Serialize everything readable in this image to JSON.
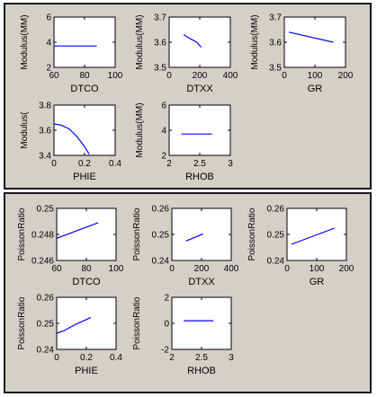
{
  "panels": [
    {
      "id": "top",
      "charts": [
        {
          "type": "line",
          "xlabel": "DTCO",
          "ylabel": "Modulus(MM)",
          "xlim": [
            60,
            100
          ],
          "ylim": [
            2,
            6
          ],
          "xticks": [
            "60",
            "80",
            "100"
          ],
          "yticks": [
            "2",
            "4",
            "6"
          ],
          "x": [
            60,
            88
          ],
          "y": [
            3.7,
            3.7
          ]
        },
        {
          "type": "line",
          "xlabel": "DTXX",
          "ylabel": "Modulus(MM)",
          "xlim": [
            0,
            400
          ],
          "ylim": [
            3.5,
            3.7
          ],
          "xticks": [
            "0",
            "200",
            "400"
          ],
          "yticks": [
            "3.5",
            "3.6",
            "3.7"
          ],
          "x": [
            95,
            120,
            150,
            180,
            210
          ],
          "y": [
            3.63,
            3.62,
            3.61,
            3.6,
            3.58
          ]
        },
        {
          "type": "line",
          "xlabel": "GR",
          "ylabel": "Modulus(MM)",
          "xlim": [
            0,
            200
          ],
          "ylim": [
            3.5,
            3.7
          ],
          "xticks": [
            "0",
            "100",
            "200"
          ],
          "yticks": [
            "3.5",
            "3.6",
            "3.7"
          ],
          "x": [
            15,
            160
          ],
          "y": [
            3.64,
            3.6
          ]
        },
        {
          "type": "line",
          "xlabel": "PHIE",
          "ylabel": "Modulus(",
          "xlim": [
            0,
            0.4
          ],
          "ylim": [
            3.4,
            3.8
          ],
          "xticks": [
            "0",
            "0.2",
            "0.4"
          ],
          "yticks": [
            "3.4",
            "3.6",
            "3.8"
          ],
          "x": [
            0,
            0.05,
            0.1,
            0.15,
            0.2,
            0.23
          ],
          "y": [
            3.65,
            3.64,
            3.61,
            3.55,
            3.47,
            3.41
          ]
        },
        {
          "type": "line",
          "xlabel": "RHOB",
          "ylabel": "Modulus(MM)",
          "xlim": [
            2,
            3
          ],
          "ylim": [
            2,
            6
          ],
          "xticks": [
            "2",
            "2.5",
            "3"
          ],
          "yticks": [
            "2",
            "4",
            "6"
          ],
          "x": [
            2.2,
            2.7
          ],
          "y": [
            3.7,
            3.7
          ]
        }
      ]
    },
    {
      "id": "bottom",
      "charts": [
        {
          "type": "line",
          "xlabel": "DTCO",
          "ylabel": "PoissonRatio",
          "xlim": [
            60,
            100
          ],
          "ylim": [
            0.246,
            0.25
          ],
          "xticks": [
            "60",
            "80",
            "100"
          ],
          "yticks": [
            "0.246",
            "0.248",
            "0.25"
          ],
          "x": [
            60,
            88
          ],
          "y": [
            0.2477,
            0.2489
          ]
        },
        {
          "type": "line",
          "xlabel": "DTXX",
          "ylabel": "PoissonRatio",
          "xlim": [
            0,
            400
          ],
          "ylim": [
            0.24,
            0.26
          ],
          "xticks": [
            "0",
            "200",
            "400"
          ],
          "yticks": [
            "0.24",
            "0.25",
            "0.26"
          ],
          "x": [
            95,
            210
          ],
          "y": [
            0.2475,
            0.2502
          ]
        },
        {
          "type": "line",
          "xlabel": "GR",
          "ylabel": "PoissonRatio",
          "xlim": [
            0,
            200
          ],
          "ylim": [
            0.24,
            0.26
          ],
          "xticks": [
            "0",
            "100",
            "200"
          ],
          "yticks": [
            "0.24",
            "0.25",
            "0.26"
          ],
          "x": [
            15,
            160
          ],
          "y": [
            0.2462,
            0.2524
          ]
        },
        {
          "type": "line",
          "xlabel": "PHIE",
          "ylabel": "PoissonRatio",
          "xlim": [
            0,
            0.4
          ],
          "ylim": [
            0.24,
            0.26
          ],
          "xticks": [
            "0",
            "0.2",
            "0.4"
          ],
          "yticks": [
            "0.24",
            "0.25",
            "0.26"
          ],
          "x": [
            0,
            0.05,
            0.1,
            0.15,
            0.23
          ],
          "y": [
            0.2462,
            0.2472,
            0.2488,
            0.2502,
            0.2522
          ]
        },
        {
          "type": "line",
          "xlabel": "RHOB",
          "ylabel": "PoissonRatio",
          "xlim": [
            2,
            3
          ],
          "ylim": [
            -2,
            2
          ],
          "xticks": [
            "2",
            "2.5",
            "3"
          ],
          "yticks": [
            "-2",
            "0",
            "2"
          ],
          "x": [
            2.2,
            2.7
          ],
          "y": [
            0.2,
            0.2
          ]
        }
      ]
    }
  ],
  "colors": {
    "line": "#0000ff",
    "axes": "#000000",
    "plot_bg": "#ffffff",
    "panel_bg": "#d4d0c8"
  }
}
